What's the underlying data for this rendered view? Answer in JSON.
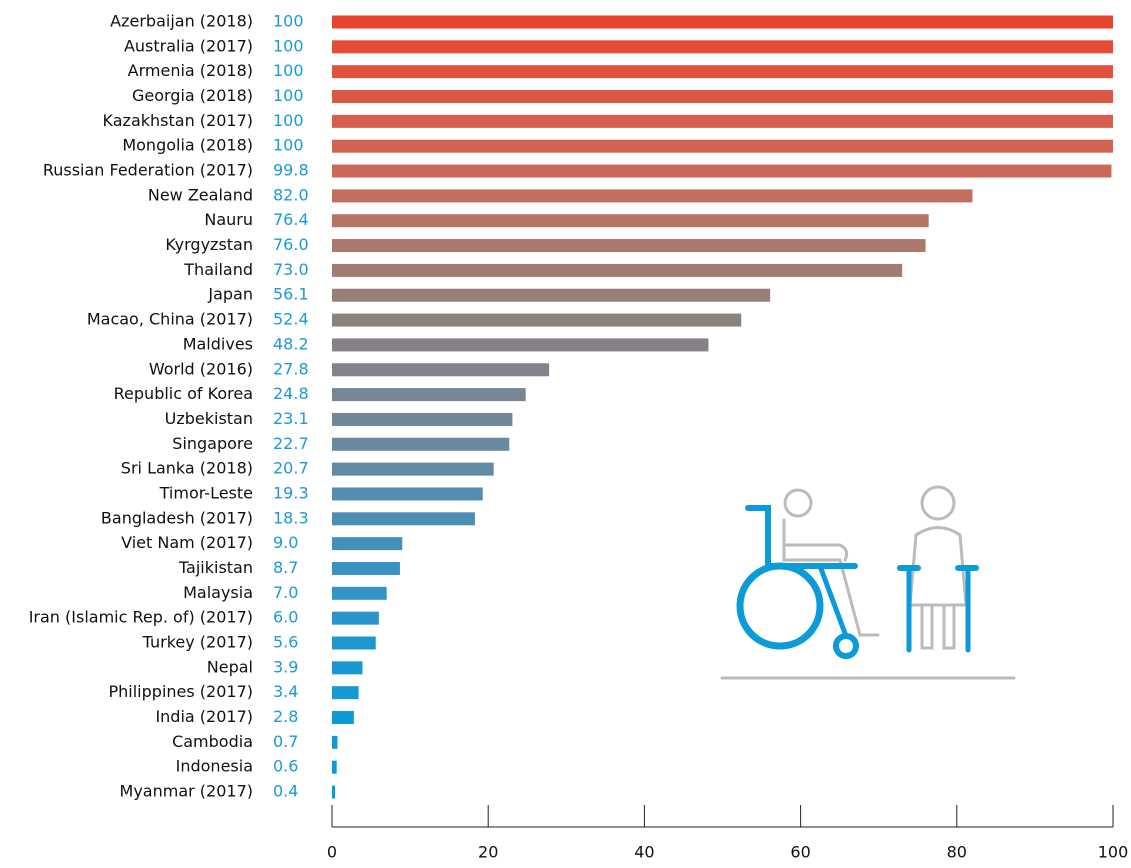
{
  "chart_data": {
    "type": "hbar",
    "categories": [
      "Azerbaijan (2018)",
      "Australia (2017)",
      "Armenia (2018)",
      "Georgia (2018)",
      "Kazakhstan (2017)",
      "Mongolia (2018)",
      "Russian Federation (2017)",
      "New Zealand",
      "Nauru",
      "Kyrgyzstan",
      "Thailand",
      "Japan",
      "Macao, China (2017)",
      "Maldives",
      "World (2016)",
      "Republic of Korea",
      "Uzbekistan",
      "Singapore",
      "Sri Lanka (2018)",
      "Timor-Leste",
      "Bangladesh (2017)",
      "Viet Nam (2017)",
      "Tajikistan",
      "Malaysia",
      "Iran (Islamic Rep. of) (2017)",
      "Turkey (2017)",
      "Nepal",
      "Philippines (2017)",
      "India (2017)",
      "Cambodia",
      "Indonesia",
      "Myanmar (2017)"
    ],
    "values": [
      100,
      100,
      100,
      100,
      100,
      100,
      99.8,
      82.0,
      76.4,
      76.0,
      73.0,
      56.1,
      52.4,
      48.2,
      27.8,
      24.8,
      23.1,
      22.7,
      20.7,
      19.3,
      18.3,
      9.0,
      8.7,
      7.0,
      6.0,
      5.6,
      3.9,
      3.4,
      2.8,
      0.7,
      0.6,
      0.4
    ],
    "value_labels": [
      "100",
      "100",
      "100",
      "100",
      "100",
      "100",
      "99.8",
      "82.0",
      "76.4",
      "76.0",
      "73.0",
      "56.1",
      "52.4",
      "48.2",
      "27.8",
      "24.8",
      "23.1",
      "22.7",
      "20.7",
      "19.3",
      "18.3",
      "9.0",
      "8.7",
      "7.0",
      "6.0",
      "5.6",
      "3.9",
      "3.4",
      "2.8",
      "0.7",
      "0.6",
      "0.4"
    ],
    "colors": [
      "#e8432d",
      "#e44c36",
      "#e0523e",
      "#db5843",
      "#d65e4a",
      "#d06450",
      "#c96a58",
      "#c06f5e",
      "#b67465",
      "#ab786c",
      "#a27b72",
      "#987e79",
      "#8f8080",
      "#878187",
      "#80838e",
      "#788594",
      "#70879a",
      "#6889a0",
      "#5f8ba7",
      "#568dae",
      "#4d8fb4",
      "#4490bb",
      "#3b92c1",
      "#3294c7",
      "#2995cc",
      "#2197d0",
      "#1a98d3",
      "#1499d5",
      "#0f9ad7",
      "#0c9bd8",
      "#0a9bd8",
      "#0a9bd8"
    ],
    "xlim": [
      0,
      100
    ],
    "xticks": [
      0,
      20,
      40,
      60,
      80,
      100
    ]
  }
}
